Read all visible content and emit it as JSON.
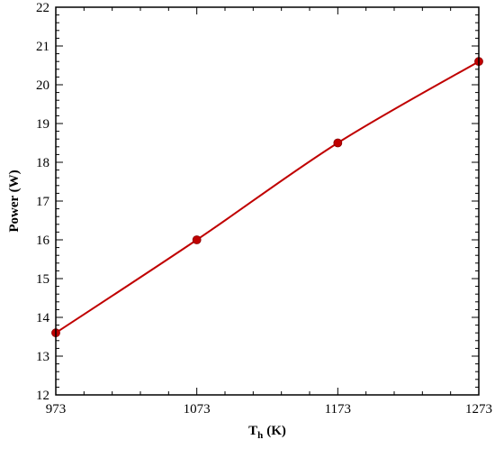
{
  "chart_data": {
    "type": "line",
    "title": "",
    "xlabel": "T",
    "xlabel_subscript": "h",
    "xlabel_unit": "(K)",
    "ylabel": "Power (W)",
    "xlim": [
      973,
      1273
    ],
    "ylim": [
      12,
      22
    ],
    "x_ticks": [
      973,
      1073,
      1173,
      1273
    ],
    "y_ticks": [
      12,
      13,
      14,
      15,
      16,
      17,
      18,
      19,
      20,
      21,
      22
    ],
    "grid": false,
    "legend": "none",
    "series": [
      {
        "color": "#c00000",
        "marker": "circle",
        "x": [
          973,
          1073,
          1173,
          1273
        ],
        "y": [
          13.6,
          16.0,
          18.5,
          20.6
        ]
      }
    ]
  }
}
